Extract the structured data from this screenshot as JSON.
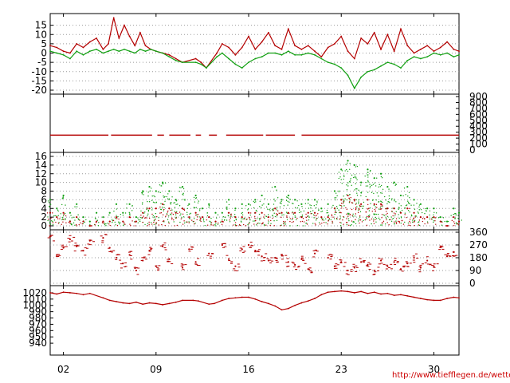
{
  "colors": {
    "red": "#b40000",
    "green": "#12a012",
    "grid": "#9a9a9a",
    "frame": "#000000"
  },
  "credit": "http://www.tiefflegen.de/wetter/",
  "x_axis": {
    "ticks": [
      "02",
      "09",
      "16",
      "23",
      "30"
    ],
    "tick_days": [
      2,
      9,
      16,
      23,
      30
    ],
    "range": [
      1,
      31.9
    ]
  },
  "chart_data": [
    {
      "type": "line",
      "ylim": [
        -20,
        20
      ],
      "y_ticks_left": [
        "15",
        "10",
        "5",
        "0",
        "-5",
        "-10",
        "-15",
        "-20"
      ],
      "y_tick_values_left": [
        15,
        10,
        5,
        0,
        -5,
        -10,
        -15,
        -20
      ],
      "grid": true,
      "series": [
        {
          "color": "red",
          "x": [
            1.0,
            1.5,
            2.0,
            2.5,
            3.0,
            3.5,
            4.0,
            4.5,
            5.0,
            5.4,
            5.8,
            6.2,
            6.6,
            7.0,
            7.4,
            7.8,
            8.2,
            8.6,
            9.0,
            9.5,
            10.0,
            10.5,
            11.0,
            12.0,
            12.4,
            12.8,
            13.6,
            14.0,
            14.5,
            15.0,
            15.5,
            16.0,
            16.5,
            17.0,
            17.5,
            18.0,
            18.5,
            19.0,
            19.5,
            20.0,
            20.5,
            21.0,
            21.5,
            22.0,
            22.5,
            23.0,
            23.5,
            24.0,
            24.5,
            25.0,
            25.5,
            26.0,
            26.5,
            27.0,
            27.5,
            28.0,
            28.5,
            29.0,
            29.5,
            30.0,
            30.5,
            31.0,
            31.5,
            31.9
          ],
          "y": [
            4,
            3,
            1,
            0,
            5,
            3,
            6,
            8,
            2,
            5,
            19,
            8,
            15,
            9,
            4,
            11,
            4,
            2,
            1,
            0,
            -1,
            -3,
            -5,
            -3,
            -5,
            -8,
            0,
            5,
            3,
            -1,
            3,
            9,
            2,
            6,
            11,
            4,
            2,
            13,
            4,
            2,
            4,
            1,
            -2,
            3,
            5,
            9,
            1,
            -3,
            8,
            5,
            11,
            2,
            10,
            1,
            13,
            4,
            0,
            2,
            4,
            1,
            3,
            6,
            2,
            1
          ]
        },
        {
          "color": "green",
          "x": [
            1.0,
            1.5,
            2.0,
            2.5,
            3.0,
            3.5,
            4.0,
            4.5,
            5.0,
            5.4,
            5.8,
            6.2,
            6.6,
            7.0,
            7.4,
            7.8,
            8.2,
            8.6,
            9.0,
            9.5,
            10.0,
            10.5,
            11.0,
            12.0,
            12.4,
            12.8,
            13.6,
            14.0,
            14.5,
            15.0,
            15.5,
            16.0,
            16.5,
            17.0,
            17.5,
            18.0,
            18.5,
            19.0,
            19.5,
            20.0,
            20.5,
            21.0,
            21.5,
            22.0,
            22.5,
            23.0,
            23.5,
            24.0,
            24.5,
            25.0,
            25.5,
            26.0,
            26.5,
            27.0,
            27.5,
            28.0,
            28.5,
            29.0,
            29.5,
            30.0,
            30.5,
            31.0,
            31.5,
            31.9
          ],
          "y": [
            1,
            0,
            -1,
            -3,
            1,
            -1,
            1,
            2,
            0,
            1,
            2,
            1,
            2,
            1,
            0,
            2,
            1,
            2,
            1,
            0,
            -2,
            -4,
            -5,
            -5,
            -6,
            -8,
            -2,
            0,
            -3,
            -6,
            -8,
            -5,
            -3,
            -2,
            0,
            0,
            -1,
            1,
            -1,
            -1,
            0,
            -1,
            -3,
            -5,
            -6,
            -8,
            -12,
            -19,
            -13,
            -10,
            -9,
            -7,
            -5,
            -6,
            -8,
            -4,
            -2,
            -3,
            -2,
            0,
            -1,
            0,
            -2,
            -1
          ]
        }
      ]
    },
    {
      "type": "line",
      "ylim": [
        0,
        900
      ],
      "y_ticks_right": [
        "900",
        "800",
        "700",
        "600",
        "500",
        "400",
        "300",
        "200",
        "100",
        "0"
      ],
      "y_tick_values_right": [
        900,
        800,
        700,
        600,
        500,
        400,
        300,
        200,
        100,
        0
      ],
      "grid": false,
      "series": [
        {
          "color": "red",
          "segments": [
            [
              1.0,
              5.4
            ],
            [
              5.6,
              8.7
            ],
            [
              9.1,
              9.6
            ],
            [
              10.0,
              11.6
            ],
            [
              12.0,
              12.4
            ],
            [
              13.0,
              13.6
            ],
            [
              14.3,
              17.1
            ],
            [
              17.3,
              19.5
            ],
            [
              20.0,
              31.9
            ]
          ],
          "value": 250
        }
      ]
    },
    {
      "type": "scatter",
      "ylim": [
        0,
        16
      ],
      "y_ticks_left": [
        "16",
        "14",
        "12",
        "10",
        "8",
        "6",
        "4",
        "2",
        "0"
      ],
      "y_tick_values_left": [
        16,
        14,
        12,
        10,
        8,
        6,
        4,
        2,
        0
      ],
      "grid": true,
      "series": [
        {
          "color": "green",
          "x": [
            1.0,
            1.5,
            2.0,
            2.5,
            3.0,
            3.5,
            4.0,
            4.5,
            5.0,
            5.5,
            6.0,
            6.5,
            7.0,
            7.5,
            8.0,
            8.5,
            9.0,
            9.5,
            10.0,
            10.5,
            11.0,
            11.5,
            12.0,
            12.5,
            13.0,
            13.5,
            14.0,
            14.5,
            15.0,
            15.5,
            16.0,
            16.5,
            17.0,
            17.5,
            18.0,
            18.5,
            19.0,
            19.5,
            20.0,
            20.5,
            21.0,
            21.5,
            22.0,
            22.5,
            23.0,
            23.5,
            24.0,
            24.5,
            25.0,
            25.5,
            26.0,
            26.5,
            27.0,
            27.5,
            28.0,
            28.5,
            29.0,
            29.5,
            30.0,
            30.5,
            31.0,
            31.5,
            31.9
          ],
          "y": [
            6,
            4,
            7,
            3,
            5,
            2,
            1,
            3,
            2,
            3,
            5,
            3,
            5,
            2,
            8,
            9,
            8,
            10,
            8,
            6,
            9,
            5,
            7,
            4,
            5,
            3,
            3,
            6,
            4,
            5,
            5,
            6,
            7,
            5,
            9,
            6,
            7,
            6,
            5,
            6,
            6,
            4,
            5,
            8,
            13,
            15,
            14,
            10,
            13,
            11,
            12,
            9,
            10,
            7,
            9,
            6,
            5,
            4,
            4,
            2,
            1,
            4,
            3
          ]
        },
        {
          "color": "red",
          "x": [
            1.0,
            1.5,
            2.0,
            2.5,
            3.0,
            3.5,
            4.0,
            4.5,
            5.0,
            5.5,
            6.0,
            6.5,
            7.0,
            7.5,
            8.0,
            8.5,
            9.0,
            9.5,
            10.0,
            10.5,
            11.0,
            11.5,
            12.0,
            12.5,
            13.0,
            13.5,
            14.0,
            14.5,
            15.0,
            15.5,
            16.0,
            16.5,
            17.0,
            17.5,
            18.0,
            18.5,
            19.0,
            19.5,
            20.0,
            20.5,
            21.0,
            21.5,
            22.0,
            22.5,
            23.0,
            23.5,
            24.0,
            24.5,
            25.0,
            25.5,
            26.0,
            26.5,
            27.0,
            27.5,
            28.0,
            28.5,
            29.0,
            29.5,
            30.0,
            30.5,
            31.0,
            31.5,
            31.9
          ],
          "y": [
            3,
            2,
            3,
            1,
            2,
            1,
            0,
            1,
            1,
            1,
            2,
            1,
            2,
            1,
            3,
            4,
            4,
            5,
            4,
            3,
            4,
            2,
            3,
            2,
            2,
            1,
            1,
            3,
            2,
            2,
            3,
            3,
            3,
            2,
            4,
            3,
            3,
            3,
            2,
            3,
            3,
            2,
            2,
            4,
            6,
            7,
            6,
            5,
            6,
            5,
            5,
            4,
            4,
            3,
            4,
            3,
            2,
            2,
            2,
            1,
            0,
            2,
            1
          ]
        }
      ]
    },
    {
      "type": "scatter",
      "ylim": [
        0,
        360
      ],
      "y_ticks_right": [
        "360",
        "270",
        "180",
        "90",
        "0"
      ],
      "y_tick_values_right": [
        360,
        270,
        180,
        90,
        0
      ],
      "grid": true,
      "series": [
        {
          "color": "red",
          "x": [
            1.0,
            1.5,
            2.0,
            2.5,
            3.0,
            3.5,
            4.0,
            5.0,
            5.5,
            6.0,
            6.5,
            7.0,
            7.5,
            8.0,
            8.5,
            9.0,
            9.5,
            10.0,
            11.0,
            11.5,
            12.0,
            13.0,
            14.0,
            14.5,
            15.0,
            15.5,
            16.0,
            16.5,
            17.0,
            17.5,
            18.0,
            18.5,
            19.0,
            19.5,
            20.0,
            20.5,
            21.0,
            22.0,
            22.5,
            23.0,
            23.5,
            24.0,
            24.5,
            25.0,
            25.5,
            26.0,
            26.5,
            27.0,
            27.5,
            28.0,
            28.5,
            29.0,
            29.5,
            30.0,
            30.5,
            31.0,
            31.5
          ],
          "y": [
            330,
            200,
            250,
            310,
            260,
            230,
            300,
            320,
            250,
            180,
            140,
            200,
            90,
            160,
            230,
            120,
            260,
            170,
            110,
            240,
            150,
            210,
            270,
            170,
            120,
            240,
            270,
            230,
            190,
            160,
            180,
            200,
            150,
            130,
            170,
            100,
            210,
            180,
            120,
            150,
            90,
            110,
            150,
            130,
            90,
            160,
            120,
            150,
            100,
            140,
            180,
            110,
            160,
            120,
            260,
            190,
            220
          ]
        }
      ]
    },
    {
      "type": "line",
      "ylim": [
        930,
        1025
      ],
      "y_ticks_left": [
        "1020",
        "1010",
        "1000",
        "990",
        "980",
        "970",
        "960",
        "950",
        "940"
      ],
      "y_tick_values_left": [
        1020,
        1010,
        1000,
        990,
        980,
        970,
        960,
        950,
        940
      ],
      "grid": false,
      "series": [
        {
          "color": "red",
          "x": [
            1.0,
            1.5,
            2.0,
            2.5,
            3.0,
            3.5,
            4.0,
            5.0,
            5.5,
            6.0,
            6.5,
            7.0,
            7.5,
            8.0,
            8.5,
            9.0,
            9.5,
            10.0,
            10.5,
            11.0,
            11.8,
            12.2,
            13.0,
            13.4,
            14.0,
            14.5,
            15.0,
            15.5,
            16.0,
            16.5,
            17.0,
            17.5,
            18.0,
            18.5,
            19.0,
            19.5,
            20.0,
            20.5,
            21.0,
            21.5,
            22.0,
            22.5,
            23.0,
            23.5,
            24.0,
            24.5,
            25.0,
            25.5,
            26.0,
            26.5,
            27.0,
            27.5,
            28.0,
            28.5,
            29.0,
            29.5,
            30.0,
            30.5,
            31.0,
            31.5,
            31.9
          ],
          "y": [
            1020,
            1018,
            1021,
            1020,
            1019,
            1017,
            1019,
            1012,
            1008,
            1006,
            1004,
            1003,
            1005,
            1002,
            1004,
            1003,
            1001,
            1003,
            1005,
            1008,
            1008,
            1007,
            1002,
            1003,
            1008,
            1011,
            1012,
            1013,
            1013,
            1010,
            1006,
            1003,
            999,
            993,
            995,
            1000,
            1004,
            1007,
            1011,
            1017,
            1021,
            1022,
            1023,
            1022,
            1020,
            1022,
            1019,
            1021,
            1018,
            1019,
            1016,
            1017,
            1015,
            1013,
            1011,
            1009,
            1008,
            1008,
            1011,
            1013,
            1012
          ]
        }
      ]
    }
  ]
}
